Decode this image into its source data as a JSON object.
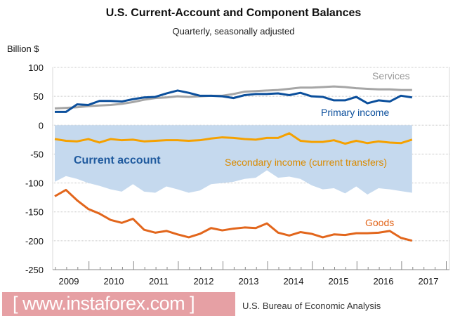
{
  "chart_data": {
    "type": "line",
    "title": "U.S. Current-Account and Component Balances",
    "subtitle": "Quarterly, seasonally adjusted",
    "ylabel": "Billion $",
    "ylim": [
      -250,
      100
    ],
    "yticks": [
      100,
      50,
      0,
      -50,
      -100,
      -150,
      -200,
      -250
    ],
    "year_labels": [
      "2009",
      "2010",
      "2011",
      "2012",
      "2013",
      "2014",
      "2015",
      "2016",
      "2017"
    ],
    "grid": true,
    "series": [
      {
        "name": "Services",
        "color": "#a6a6a6",
        "values": [
          29,
          30,
          31,
          33,
          34,
          35,
          37,
          40,
          44,
          47,
          48,
          50,
          49,
          50,
          51,
          51,
          54,
          58,
          59,
          60,
          61,
          63,
          65,
          65,
          66,
          67,
          66,
          64,
          63,
          62,
          62,
          61,
          61
        ]
      },
      {
        "name": "Primary income",
        "color": "#0b4f9c",
        "values": [
          23,
          23,
          36,
          35,
          42,
          42,
          41,
          45,
          48,
          49,
          55,
          60,
          56,
          51,
          51,
          50,
          47,
          52,
          54,
          54,
          55,
          52,
          56,
          50,
          49,
          43,
          43,
          49,
          38,
          43,
          41,
          51,
          48
        ]
      },
      {
        "name": "Secondary income (current transfers)",
        "color": "#f5a100",
        "values": [
          -24,
          -27,
          -28,
          -24,
          -30,
          -24,
          -26,
          -25,
          -28,
          -27,
          -26,
          -26,
          -27,
          -26,
          -23,
          -21,
          -22,
          -24,
          -25,
          -22,
          -22,
          -14,
          -27,
          -29,
          -29,
          -26,
          -32,
          -27,
          -31,
          -28,
          -30,
          -31,
          -25
        ]
      },
      {
        "name": "Goods",
        "color": "#e2661c",
        "values": [
          -123,
          -112,
          -130,
          -145,
          -153,
          -164,
          -169,
          -162,
          -181,
          -186,
          -183,
          -189,
          -194,
          -188,
          -178,
          -182,
          -179,
          -177,
          -178,
          -170,
          -186,
          -191,
          -185,
          -188,
          -194,
          -189,
          -190,
          -187,
          -187,
          -186,
          -183,
          -195,
          -200
        ]
      },
      {
        "name": "Current account",
        "type": "area",
        "color": "#c5d9ee",
        "label_color": "#1f5a9e",
        "values": [
          -98,
          -88,
          -93,
          -100,
          -105,
          -111,
          -115,
          -102,
          -115,
          -117,
          -106,
          -111,
          -117,
          -113,
          -102,
          -100,
          -98,
          -93,
          -91,
          -78,
          -91,
          -89,
          -93,
          -104,
          -111,
          -109,
          -118,
          -106,
          -120,
          -109,
          -111,
          -114,
          -117
        ]
      }
    ]
  },
  "watermark": "[ www.instaforex.com ]",
  "source": "U.S. Bureau of Economic Analysis"
}
